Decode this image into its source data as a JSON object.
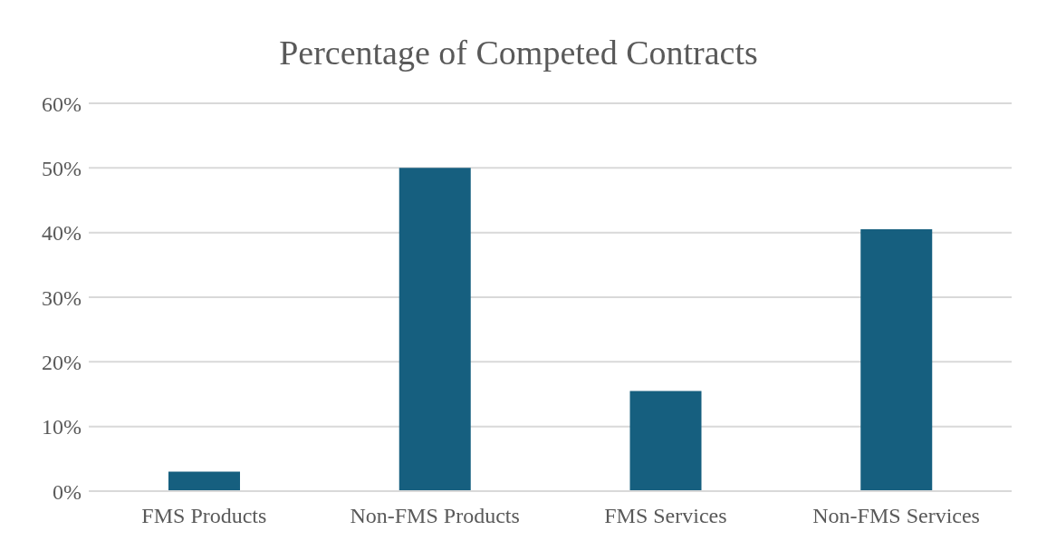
{
  "chart_data": {
    "type": "bar",
    "title": "Percentage of Competed Contracts",
    "categories": [
      "FMS Products",
      "Non-FMS Products",
      "FMS Services",
      "Non-FMS Services"
    ],
    "values": [
      3,
      50,
      15.5,
      40.5
    ],
    "color": "#165f7f",
    "ylim": [
      0,
      60
    ],
    "yticks": [
      {
        "value": 0,
        "label": "0%"
      },
      {
        "value": 10,
        "label": "10%"
      },
      {
        "value": 20,
        "label": "20%"
      },
      {
        "value": 30,
        "label": "30%"
      },
      {
        "value": 40,
        "label": "40%"
      },
      {
        "value": 50,
        "label": "50%"
      },
      {
        "value": 60,
        "label": "60%"
      }
    ],
    "grid": "y",
    "legend": false
  }
}
